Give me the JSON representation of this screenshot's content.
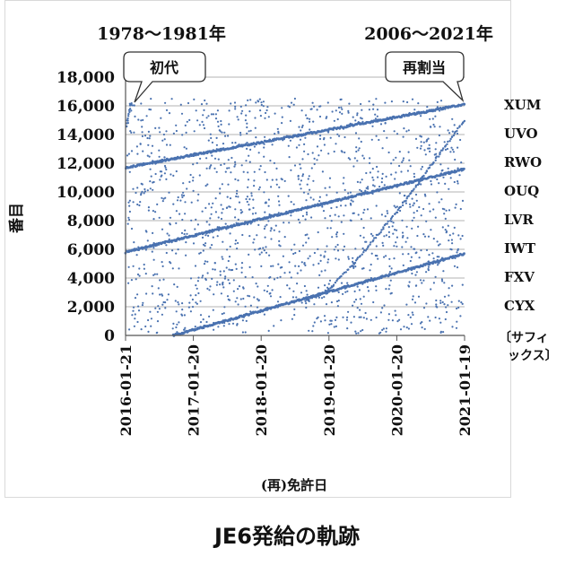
{
  "caption": "JE6発給の軌跡",
  "chart_data": {
    "type": "scatter",
    "title": "JE6発給の軌跡",
    "xlabel": "(再)免許日",
    "ylabel": "番目",
    "ylim": [
      0,
      18000
    ],
    "yticks": [
      0,
      2000,
      4000,
      6000,
      8000,
      10000,
      12000,
      14000,
      16000,
      18000
    ],
    "ytick_labels": [
      "0",
      "2,000",
      "4,000",
      "6,000",
      "8,000",
      "10,000",
      "12,000",
      "14,000",
      "16,000",
      "18,000"
    ],
    "xrange": [
      "2016-01-21",
      "2021-01-19"
    ],
    "xticks": [
      "2016-01-21",
      "2017-01-20",
      "2018-01-20",
      "2019-01-20",
      "2020-01-20",
      "2021-01-19"
    ],
    "grid": true,
    "period_labels": {
      "left": "1978～1981年",
      "right": "2006～2021年"
    },
    "callouts": {
      "left": "初代",
      "right": "再割当"
    },
    "suffix_labels": [
      "XUM",
      "UVO",
      "RWO",
      "OUQ",
      "LVR",
      "IWT",
      "FXV",
      "CYX",
      "〔サフィ",
      "ックス〕"
    ],
    "series": [
      {
        "name": "top line",
        "x": [
          "2016-01-21",
          "2021-01-19"
        ],
        "y": [
          11700,
          16100
        ]
      },
      {
        "name": "middle line",
        "x": [
          "2016-01-21",
          "2021-01-19"
        ],
        "y": [
          5800,
          11600
        ]
      },
      {
        "name": "bottom line",
        "x": [
          "2016-10-05",
          "2021-01-19"
        ],
        "y": [
          0,
          5700
        ]
      },
      {
        "name": "diagonal",
        "x": [
          "2018-09-15",
          "2019-01-20",
          "2019-06-01",
          "2020-01-20",
          "2020-08-01",
          "2021-01-19"
        ],
        "y": [
          2400,
          3200,
          5000,
          8600,
          12000,
          15000
        ]
      },
      {
        "name": "initial burst",
        "x": [
          "2016-01-25",
          "2016-02-15",
          "2016-03-10"
        ],
        "y": [
          14500,
          16100,
          16000
        ]
      }
    ]
  }
}
